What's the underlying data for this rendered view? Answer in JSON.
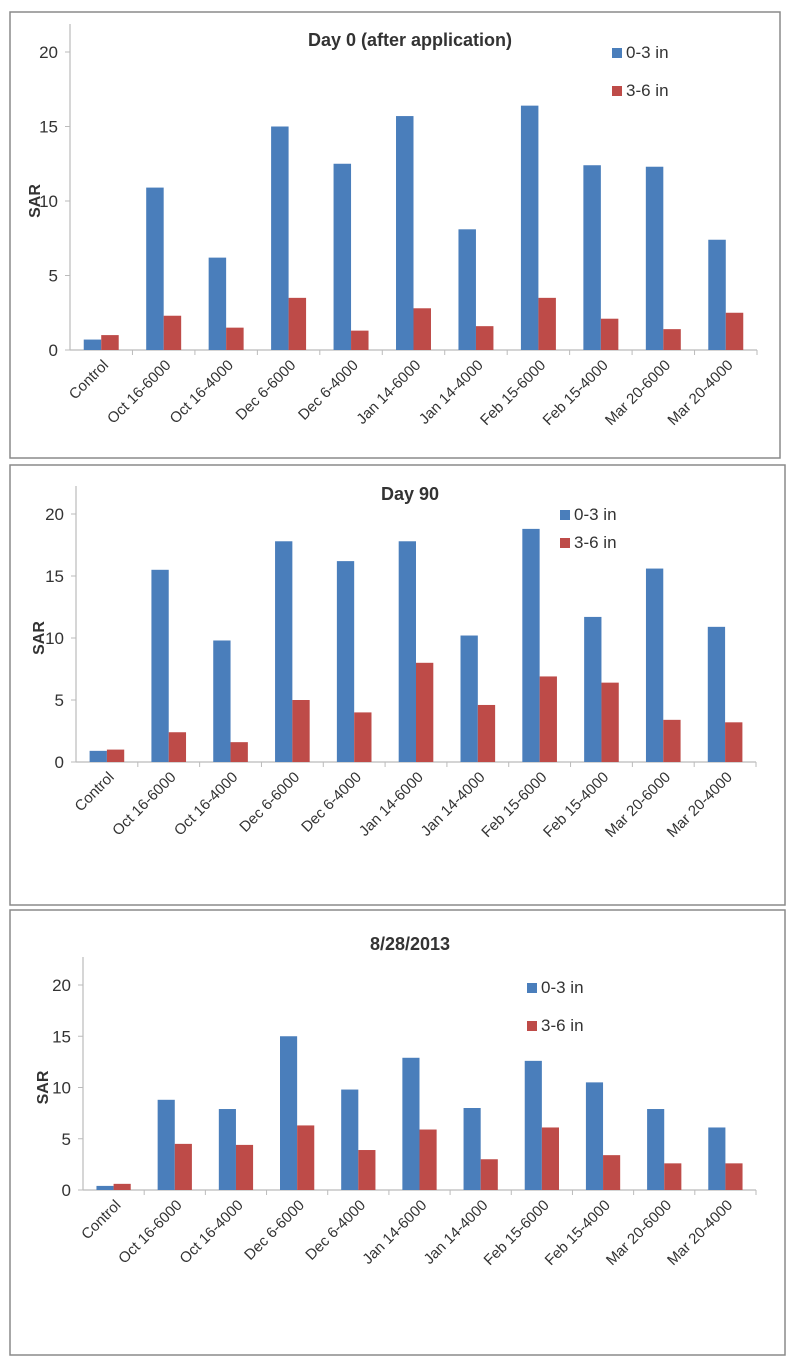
{
  "chart_data": [
    {
      "type": "bar",
      "title": "Day 0 (after application)",
      "ylabel": "SAR",
      "xlabel": "",
      "ylim": [
        0,
        20
      ],
      "yticks": [
        0,
        5,
        10,
        15,
        20
      ],
      "grid": false,
      "legend": "top-right",
      "categories": [
        "Control",
        "Oct 16-6000",
        "Oct 16-4000",
        "Dec 6-6000",
        "Dec 6-4000",
        "Jan 14-6000",
        "Jan 14-4000",
        "Feb 15-6000",
        "Feb 15-4000",
        "Mar 20-6000",
        "Mar 20-4000"
      ],
      "series": [
        {
          "name": "0-3 in",
          "color": "#4a7ebb",
          "values": [
            0.7,
            10.9,
            6.2,
            15.0,
            12.5,
            15.7,
            8.1,
            16.4,
            12.4,
            12.3,
            7.4
          ]
        },
        {
          "name": "3-6 in",
          "color": "#be4b48",
          "values": [
            1.0,
            2.3,
            1.5,
            3.5,
            1.3,
            2.8,
            1.6,
            3.5,
            2.1,
            1.4,
            2.5
          ]
        }
      ]
    },
    {
      "type": "bar",
      "title": "Day 90",
      "ylabel": "SAR",
      "xlabel": "",
      "ylim": [
        0,
        20
      ],
      "yticks": [
        0,
        5,
        10,
        15,
        20
      ],
      "grid": false,
      "legend": "top-right",
      "categories": [
        "Control",
        "Oct 16-6000",
        "Oct 16-4000",
        "Dec 6-6000",
        "Dec 6-4000",
        "Jan 14-6000",
        "Jan 14-4000",
        "Feb 15-6000",
        "Feb 15-4000",
        "Mar 20-6000",
        "Mar 20-4000"
      ],
      "series": [
        {
          "name": "0-3 in",
          "color": "#4a7ebb",
          "values": [
            0.9,
            15.5,
            9.8,
            17.8,
            16.2,
            17.8,
            10.2,
            18.8,
            11.7,
            15.6,
            10.9
          ]
        },
        {
          "name": "3-6 in",
          "color": "#be4b48",
          "values": [
            1.0,
            2.4,
            1.6,
            5.0,
            4.0,
            8.0,
            4.6,
            6.9,
            6.4,
            3.4,
            3.2
          ]
        }
      ]
    },
    {
      "type": "bar",
      "title": "8/28/2013",
      "ylabel": "SAR",
      "xlabel": "",
      "ylim": [
        0,
        20
      ],
      "yticks": [
        0,
        5,
        10,
        15,
        20
      ],
      "grid": false,
      "legend": "top-right",
      "categories": [
        "Control",
        "Oct 16-6000",
        "Oct 16-4000",
        "Dec 6-6000",
        "Dec 6-4000",
        "Jan 14-6000",
        "Jan 14-4000",
        "Feb 15-6000",
        "Feb 15-4000",
        "Mar 20-6000",
        "Mar 20-4000"
      ],
      "series": [
        {
          "name": "0-3 in",
          "color": "#4a7ebb",
          "values": [
            0.4,
            8.8,
            7.9,
            15.0,
            9.8,
            12.9,
            8.0,
            12.6,
            10.5,
            7.9,
            6.1
          ]
        },
        {
          "name": "3-6 in",
          "color": "#be4b48",
          "values": [
            0.6,
            4.5,
            4.4,
            6.3,
            3.9,
            5.9,
            3.0,
            6.1,
            3.4,
            2.6,
            2.6
          ]
        }
      ]
    }
  ]
}
